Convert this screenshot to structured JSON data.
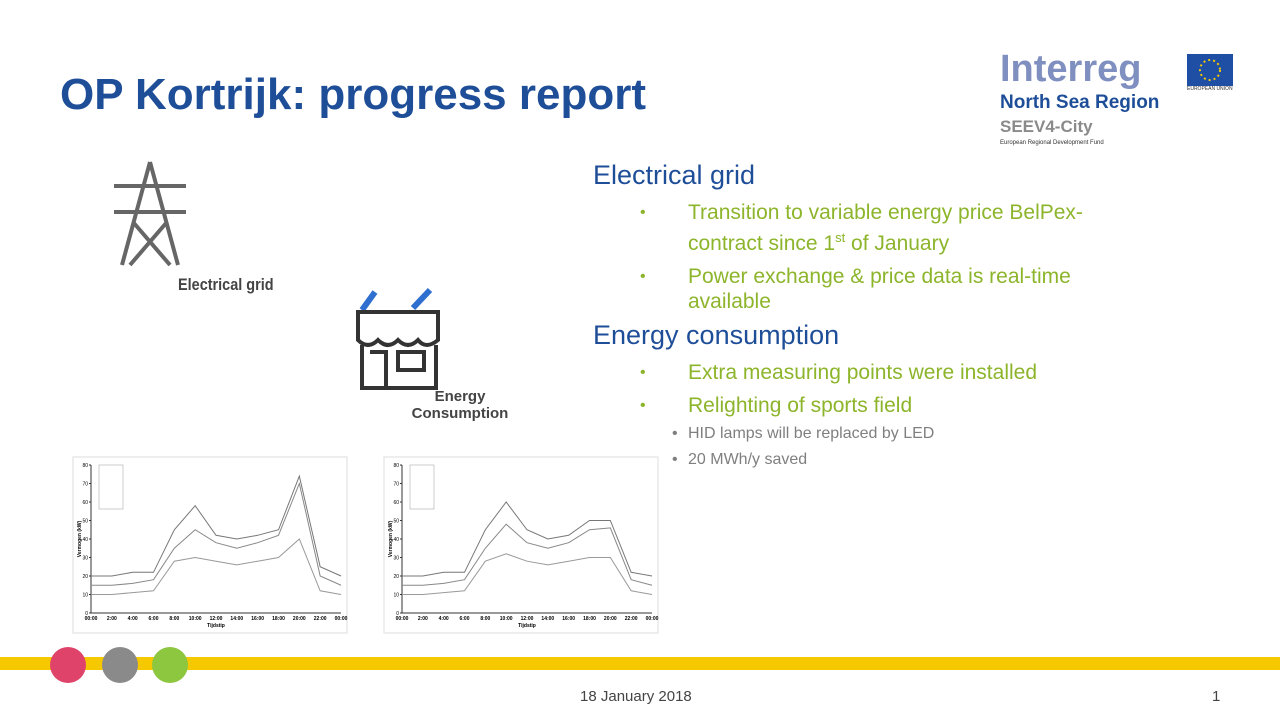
{
  "header": {
    "title": "OP Kortrijk: progress report"
  },
  "logo": {
    "name": "Interreg",
    "region": "North Sea Region",
    "project": "SEEV4-City",
    "fund": "European Regional Development Fund",
    "eu": "EUROPEAN UNION"
  },
  "icons": {
    "grid": "Electrical grid",
    "consumption": "Energy Consumption"
  },
  "sections": [
    {
      "heading": "Electrical grid",
      "bullets": [
        {
          "text": "Transition to variable energy price BelPex-contract since 1",
          "sup": "st",
          "tail": " of January"
        },
        {
          "text": "Power exchange & price data is real-time available"
        }
      ]
    },
    {
      "heading": "Energy consumption",
      "bullets": [
        {
          "text": "Extra measuring points were installed"
        },
        {
          "text": "Relighting of sports field",
          "sub": [
            "HID lamps will be replaced by LED",
            "20 MWh/y saved"
          ]
        }
      ]
    }
  ],
  "charts": [
    {
      "type": "line",
      "y_label": "Vermogen (kW)",
      "x_label": "Tijdstip",
      "ylim": [
        0,
        80
      ],
      "yticks": [
        0,
        10,
        20,
        30,
        40,
        50,
        60,
        70,
        80
      ],
      "categories": [
        "00:00",
        "2:00",
        "4:00",
        "6:00",
        "8:00",
        "10:00",
        "12:00",
        "14:00",
        "16:00",
        "18:00",
        "20:00",
        "22:00",
        "00:00"
      ],
      "series": [
        {
          "color": "#777",
          "values": [
            20,
            20,
            22,
            22,
            45,
            58,
            42,
            40,
            42,
            45,
            74,
            25,
            20
          ]
        },
        {
          "color": "#888",
          "values": [
            15,
            15,
            16,
            18,
            35,
            45,
            38,
            35,
            38,
            42,
            70,
            20,
            15
          ]
        },
        {
          "color": "#999",
          "values": [
            10,
            10,
            11,
            12,
            28,
            30,
            28,
            26,
            28,
            30,
            40,
            12,
            10
          ]
        }
      ]
    },
    {
      "type": "line",
      "y_label": "Vermogen (kW)",
      "x_label": "Tijdstip",
      "ylim": [
        0,
        80
      ],
      "yticks": [
        0,
        10,
        20,
        30,
        40,
        50,
        60,
        70,
        80
      ],
      "categories": [
        "00:00",
        "2:00",
        "4:00",
        "6:00",
        "8:00",
        "10:00",
        "12:00",
        "14:00",
        "16:00",
        "18:00",
        "20:00",
        "22:00",
        "00:00"
      ],
      "series": [
        {
          "color": "#777",
          "values": [
            20,
            20,
            22,
            22,
            45,
            60,
            45,
            40,
            42,
            50,
            50,
            22,
            20
          ]
        },
        {
          "color": "#888",
          "values": [
            15,
            15,
            16,
            18,
            35,
            48,
            38,
            35,
            38,
            45,
            46,
            18,
            15
          ]
        },
        {
          "color": "#999",
          "values": [
            10,
            10,
            11,
            12,
            28,
            32,
            28,
            26,
            28,
            30,
            30,
            12,
            10
          ]
        }
      ]
    }
  ],
  "footer": {
    "date": "18 January 2018",
    "page": 1
  }
}
